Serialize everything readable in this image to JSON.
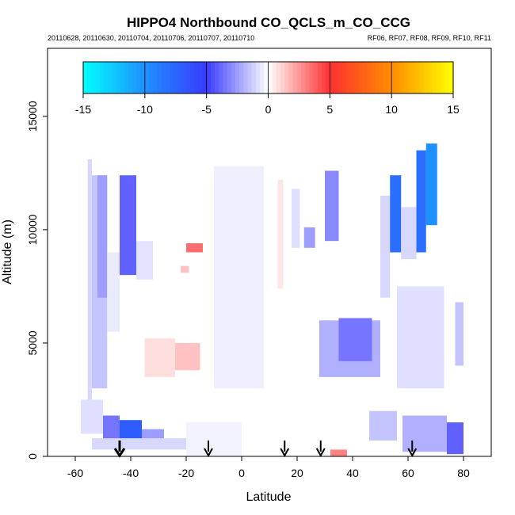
{
  "chart_data": {
    "type": "heatmap",
    "title": "HIPPO4 Northbound CO_QCLS_m_CO_CCG",
    "subtitle_left": "20110628, 20110630, 20110704, 20110706, 20110707, 20110710",
    "subtitle_right": "RF06, RF07, RF08, RF09, RF10, RF11",
    "xlabel": "Latitude",
    "ylabel": "Altitude (m)",
    "xlim": [
      -70,
      90
    ],
    "ylim": [
      0,
      18000
    ],
    "x_ticks": [
      -60,
      -40,
      -20,
      0,
      20,
      40,
      60,
      80
    ],
    "y_ticks": [
      0,
      5000,
      10000,
      15000
    ],
    "colorbar": {
      "range": [
        -15,
        15
      ],
      "ticks": [
        -15,
        -10,
        -5,
        0,
        5,
        10,
        15
      ],
      "stops": [
        {
          "value": -15,
          "color": "#00ffff"
        },
        {
          "value": -10,
          "color": "#1e90ff"
        },
        {
          "value": -5,
          "color": "#3a3aff"
        },
        {
          "value": 0,
          "color": "#ffffff"
        },
        {
          "value": 5,
          "color": "#ff3030"
        },
        {
          "value": 10,
          "color": "#ff8c00"
        },
        {
          "value": 15,
          "color": "#ffff00"
        }
      ]
    },
    "profile_arrows_latitude": [
      -44,
      -12,
      15.5,
      28.5,
      61.5
    ],
    "cells": [
      {
        "lat": [
          -55.5,
          -54
        ],
        "alt": [
          2200,
          13100
        ],
        "value": -1.0
      },
      {
        "lat": [
          -54,
          -48.5
        ],
        "alt": [
          3000,
          12400
        ],
        "value": -1.5
      },
      {
        "lat": [
          -52,
          -48.5
        ],
        "alt": [
          7000,
          12400
        ],
        "value": -2.5
      },
      {
        "lat": [
          -48.5,
          -44
        ],
        "alt": [
          5500,
          9000
        ],
        "value": -0.5
      },
      {
        "lat": [
          -44,
          -38
        ],
        "alt": [
          8000,
          12400
        ],
        "value": -4.0
      },
      {
        "lat": [
          -38,
          -32
        ],
        "alt": [
          7800,
          9500
        ],
        "value": -0.7
      },
      {
        "lat": [
          -35,
          -24
        ],
        "alt": [
          3500,
          5200
        ],
        "value": 0.8
      },
      {
        "lat": [
          -24,
          -15
        ],
        "alt": [
          3800,
          5000
        ],
        "value": 1.5
      },
      {
        "lat": [
          -20,
          -14
        ],
        "alt": [
          9000,
          9400
        ],
        "value": 3.5
      },
      {
        "lat": [
          -22,
          -19
        ],
        "alt": [
          8100,
          8400
        ],
        "value": 1.5
      },
      {
        "lat": [
          -9,
          -5
        ],
        "alt": [
          9200,
          11500
        ],
        "value": 1.2
      },
      {
        "lat": [
          -10,
          8
        ],
        "alt": [
          3000,
          12800
        ],
        "value": -0.4
      },
      {
        "lat": [
          13,
          15
        ],
        "alt": [
          7400,
          12200
        ],
        "value": 0.6
      },
      {
        "lat": [
          18,
          21
        ],
        "alt": [
          9200,
          11800
        ],
        "value": -0.8
      },
      {
        "lat": [
          22.5,
          26.5
        ],
        "alt": [
          9200,
          10100
        ],
        "value": -2.5
      },
      {
        "lat": [
          30,
          35
        ],
        "alt": [
          9500,
          12600
        ],
        "value": -3.0
      },
      {
        "lat": [
          28,
          50
        ],
        "alt": [
          3500,
          6000
        ],
        "value": -2.0
      },
      {
        "lat": [
          35,
          47
        ],
        "alt": [
          4200,
          6100
        ],
        "value": -3.5
      },
      {
        "lat": [
          50,
          53.5
        ],
        "alt": [
          7000,
          11500
        ],
        "value": -1.0
      },
      {
        "lat": [
          53.5,
          57.5
        ],
        "alt": [
          9000,
          12400
        ],
        "value": -8.0
      },
      {
        "lat": [
          57.5,
          63
        ],
        "alt": [
          8700,
          11000
        ],
        "value": -1.0
      },
      {
        "lat": [
          63,
          66.5
        ],
        "alt": [
          9000,
          13500
        ],
        "value": -8.0
      },
      {
        "lat": [
          66.5,
          70.5
        ],
        "alt": [
          10200,
          13800
        ],
        "value": -10.0
      },
      {
        "lat": [
          56,
          73
        ],
        "alt": [
          3000,
          7500
        ],
        "value": -0.8
      },
      {
        "lat": [
          77,
          80
        ],
        "alt": [
          4000,
          6800
        ],
        "value": -1.5
      },
      {
        "lat": [
          -58,
          -50
        ],
        "alt": [
          1000,
          2500
        ],
        "value": -0.8
      },
      {
        "lat": [
          -50,
          -44
        ],
        "alt": [
          700,
          1800
        ],
        "value": -3.5
      },
      {
        "lat": [
          -44,
          -36
        ],
        "alt": [
          600,
          1600
        ],
        "value": -7.0
      },
      {
        "lat": [
          -36,
          -28
        ],
        "alt": [
          600,
          1200
        ],
        "value": -2.5
      },
      {
        "lat": [
          -54,
          -20
        ],
        "alt": [
          300,
          800
        ],
        "value": -1.0
      },
      {
        "lat": [
          -20,
          0
        ],
        "alt": [
          0,
          1500
        ],
        "value": -0.3
      },
      {
        "lat": [
          32,
          38
        ],
        "alt": [
          0,
          300
        ],
        "value": 3.0
      },
      {
        "lat": [
          46,
          56
        ],
        "alt": [
          700,
          2000
        ],
        "value": -1.5
      },
      {
        "lat": [
          58,
          74
        ],
        "alt": [
          200,
          1800
        ],
        "value": -2.0
      },
      {
        "lat": [
          74,
          80
        ],
        "alt": [
          100,
          1500
        ],
        "value": -4.0
      }
    ]
  }
}
